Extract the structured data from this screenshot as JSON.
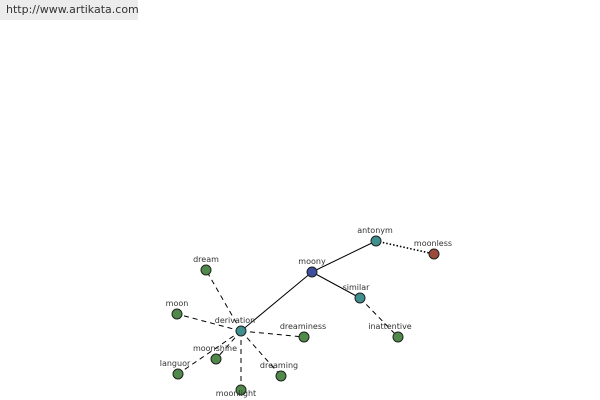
{
  "site_url": "http://www.artikata.com",
  "colors": {
    "root": "#3b4f9c",
    "relation": "#3f8f8f",
    "term": "#4f8a4a",
    "antonym_term": "#9c4a3a"
  },
  "graph": {
    "nodes": [
      {
        "id": "moony",
        "label": "moony",
        "kind": "root"
      },
      {
        "id": "antonym",
        "label": "antonym",
        "kind": "relation"
      },
      {
        "id": "moonless",
        "label": "moonless",
        "kind": "antonym_term"
      },
      {
        "id": "similar",
        "label": "similar",
        "kind": "relation"
      },
      {
        "id": "inattentive",
        "label": "inattentive",
        "kind": "term"
      },
      {
        "id": "derivation",
        "label": "derivation",
        "kind": "relation"
      },
      {
        "id": "dream",
        "label": "dream",
        "kind": "term"
      },
      {
        "id": "moon",
        "label": "moon",
        "kind": "term"
      },
      {
        "id": "dreaminess",
        "label": "dreaminess",
        "kind": "term"
      },
      {
        "id": "moonshine",
        "label": "moonshine",
        "kind": "term"
      },
      {
        "id": "languor",
        "label": "languor",
        "kind": "term"
      },
      {
        "id": "dreaming",
        "label": "dreaming",
        "kind": "term"
      },
      {
        "id": "moonlight",
        "label": "moonlight",
        "kind": "term"
      }
    ],
    "edges": [
      {
        "from": "moony",
        "to": "antonym",
        "style": "solid"
      },
      {
        "from": "moony",
        "to": "similar",
        "style": "solid"
      },
      {
        "from": "moony",
        "to": "derivation",
        "style": "solid"
      },
      {
        "from": "antonym",
        "to": "moonless",
        "style": "dotted"
      },
      {
        "from": "similar",
        "to": "inattentive",
        "style": "dashed"
      },
      {
        "from": "derivation",
        "to": "dream",
        "style": "dashed"
      },
      {
        "from": "derivation",
        "to": "moon",
        "style": "dashed"
      },
      {
        "from": "derivation",
        "to": "dreaminess",
        "style": "dashed"
      },
      {
        "from": "derivation",
        "to": "moonshine",
        "style": "dashed"
      },
      {
        "from": "derivation",
        "to": "languor",
        "style": "dashed"
      },
      {
        "from": "derivation",
        "to": "dreaming",
        "style": "dashed"
      },
      {
        "from": "derivation",
        "to": "moonlight",
        "style": "dashed"
      }
    ]
  }
}
